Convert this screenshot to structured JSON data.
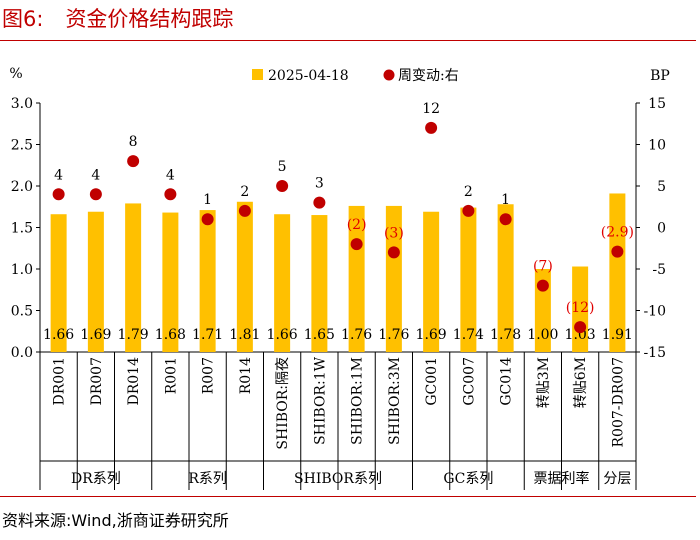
{
  "figure": {
    "label": "图6:",
    "title": "资金价格结构跟踪",
    "source": "资料来源:Wind,浙商证券研究所"
  },
  "chart_data": {
    "type": "bar",
    "title": "资金价格结构跟踪",
    "categories": [
      "DR001",
      "DR007",
      "DR014",
      "R001",
      "R007",
      "R014",
      "SHIBOR:隔夜",
      "SHIBOR:1W",
      "SHIBOR:1M",
      "SHIBOR:3M",
      "GC001",
      "GC007",
      "GC014",
      "转贴3M",
      "转贴6M",
      "R007-DR007"
    ],
    "groups": [
      {
        "label": "DR系列",
        "count": 3
      },
      {
        "label": "R系列",
        "count": 3
      },
      {
        "label": "SHIBOR系列",
        "count": 4
      },
      {
        "label": "GC系列",
        "count": 3
      },
      {
        "label": "票据利率",
        "count": 2
      },
      {
        "label": "分层",
        "count": 1
      }
    ],
    "series": [
      {
        "name": "2025-04-18",
        "kind": "bar",
        "axis": "left",
        "color": "#ffc000",
        "values": [
          1.66,
          1.69,
          1.79,
          1.68,
          1.71,
          1.81,
          1.66,
          1.65,
          1.76,
          1.76,
          1.69,
          1.74,
          1.78,
          1.0,
          1.03,
          1.91
        ],
        "value_labels": [
          "1.66",
          "1.69",
          "1.79",
          "1.68",
          "1.71",
          "1.81",
          "1.66",
          "1.65",
          "1.76",
          "1.76",
          "1.69",
          "1.74",
          "1.78",
          "1.00",
          "1.03",
          "1.91"
        ]
      },
      {
        "name": "周变动:右",
        "kind": "scatter",
        "axis": "right",
        "color": "#c00000",
        "values": [
          4,
          4,
          8,
          4,
          1,
          2,
          5,
          3,
          -2,
          -3,
          12,
          2,
          1,
          -7,
          -12,
          -2.9
        ],
        "value_labels": [
          "4",
          "4",
          "8",
          "4",
          "1",
          "2",
          "5",
          "3",
          "(2)",
          "(3)",
          "12",
          "2",
          "1",
          "(7)",
          "(12)",
          "(2.9)"
        ]
      }
    ],
    "left_axis": {
      "unit": "%",
      "ylim": [
        0,
        3.0
      ],
      "ticks": [
        0,
        0.5,
        1.0,
        1.5,
        2.0,
        2.5,
        3.0
      ],
      "tick_labels": [
        "0.0",
        "0.5",
        "1.0",
        "1.5",
        "2.0",
        "2.5",
        "3.0"
      ]
    },
    "right_axis": {
      "unit": "BP",
      "ylim": [
        -15,
        15
      ],
      "ticks": [
        -15,
        -10,
        -5,
        0,
        5,
        10,
        15
      ],
      "tick_labels": [
        "-15",
        "-10",
        "-5",
        "0",
        "5",
        "10",
        "15"
      ]
    },
    "legend": [
      "2025-04-18",
      "周变动:右"
    ],
    "legend_position": "top-center",
    "grid": false
  }
}
